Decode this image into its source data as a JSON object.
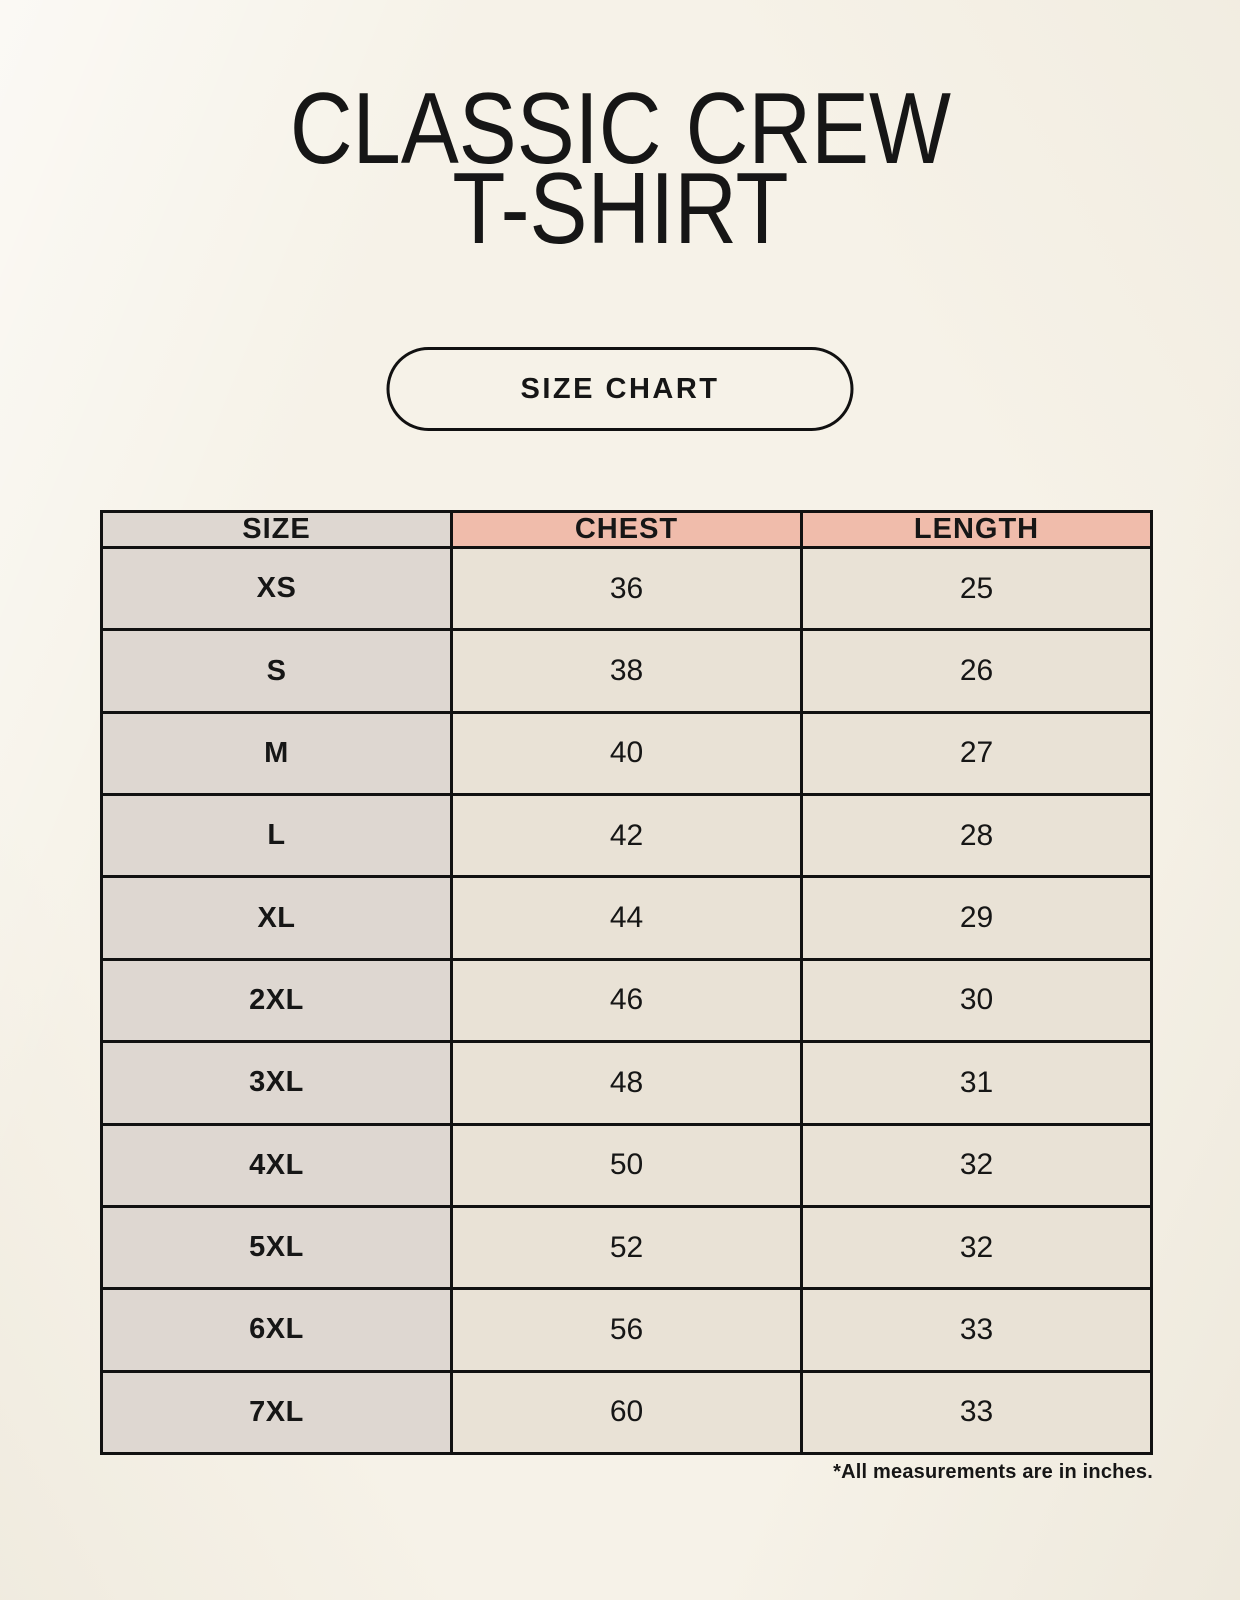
{
  "colors": {
    "background": "#f6f2e8",
    "size_column_bg": "#ded7d1",
    "accent_header_bg": "#f0bcab",
    "value_cell_bg": "#e9e2d6",
    "border": "#111111",
    "text": "#161616"
  },
  "header": {
    "title_line1": "CLASSIC CREW",
    "title_line2": "T-SHIRT"
  },
  "size_chart_button": {
    "label": "SIZE CHART"
  },
  "table": {
    "columns": [
      "SIZE",
      "CHEST",
      "LENGTH"
    ],
    "rows": [
      {
        "size": "XS",
        "chest": "36",
        "length": "25"
      },
      {
        "size": "S",
        "chest": "38",
        "length": "26"
      },
      {
        "size": "M",
        "chest": "40",
        "length": "27"
      },
      {
        "size": "L",
        "chest": "42",
        "length": "28"
      },
      {
        "size": "XL",
        "chest": "44",
        "length": "29"
      },
      {
        "size": "2XL",
        "chest": "46",
        "length": "30"
      },
      {
        "size": "3XL",
        "chest": "48",
        "length": "31"
      },
      {
        "size": "4XL",
        "chest": "50",
        "length": "32"
      },
      {
        "size": "5XL",
        "chest": "52",
        "length": "32"
      },
      {
        "size": "6XL",
        "chest": "56",
        "length": "33"
      },
      {
        "size": "7XL",
        "chest": "60",
        "length": "33"
      }
    ]
  },
  "footnote": "*All measurements are in inches."
}
